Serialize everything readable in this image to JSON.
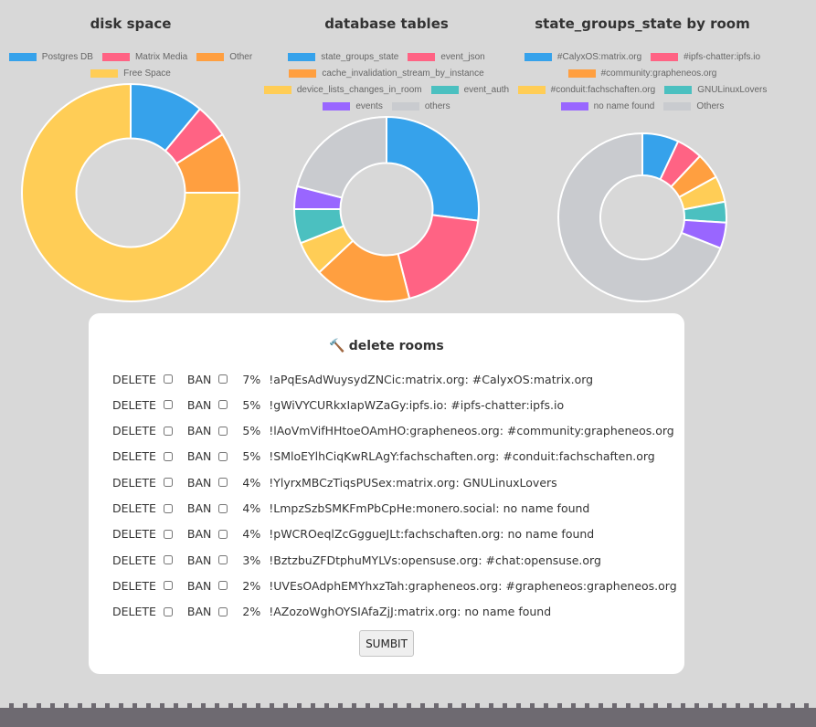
{
  "charts": [
    {
      "title": "disk space",
      "legend": [
        {
          "label": "Postgres DB",
          "color": "#36a2eb"
        },
        {
          "label": "Matrix Media",
          "color": "#ff6384"
        },
        {
          "label": "Other",
          "color": "#ff9f40"
        },
        {
          "label": "Free Space",
          "color": "#ffcd56"
        }
      ]
    },
    {
      "title": "database tables",
      "legend": [
        {
          "label": "state_groups_state",
          "color": "#36a2eb"
        },
        {
          "label": "event_json",
          "color": "#ff6384"
        },
        {
          "label": "cache_invalidation_stream_by_instance",
          "color": "#ff9f40"
        },
        {
          "label": "device_lists_changes_in_room",
          "color": "#ffcd56"
        },
        {
          "label": "event_auth",
          "color": "#4bc0c0"
        },
        {
          "label": "events",
          "color": "#9966ff"
        },
        {
          "label": "others",
          "color": "#c9cbcf"
        }
      ]
    },
    {
      "title": "state_groups_state by room",
      "legend": [
        {
          "label": "#CalyxOS:matrix.org",
          "color": "#36a2eb"
        },
        {
          "label": "#ipfs-chatter:ipfs.io",
          "color": "#ff6384"
        },
        {
          "label": "#community:grapheneos.org",
          "color": "#ff9f40"
        },
        {
          "label": "#conduit:fachschaften.org",
          "color": "#ffcd56"
        },
        {
          "label": "GNULinuxLovers",
          "color": "#4bc0c0"
        },
        {
          "label": "no name found",
          "color": "#9966ff"
        },
        {
          "label": "Others",
          "color": "#c9cbcf"
        }
      ]
    }
  ],
  "chart_data": [
    {
      "type": "pie",
      "title": "disk space",
      "categories": [
        "Postgres DB",
        "Matrix Media",
        "Other",
        "Free Space"
      ],
      "values": [
        11,
        5,
        9,
        75
      ]
    },
    {
      "type": "pie",
      "title": "database tables",
      "categories": [
        "state_groups_state",
        "event_json",
        "cache_invalidation_stream_by_instance",
        "device_lists_changes_in_room",
        "event_auth",
        "events",
        "others"
      ],
      "values": [
        27,
        19,
        17,
        6,
        6,
        4,
        21
      ]
    },
    {
      "type": "pie",
      "title": "state_groups_state by room",
      "categories": [
        "#CalyxOS:matrix.org",
        "#ipfs-chatter:ipfs.io",
        "#community:grapheneos.org",
        "#conduit:fachschaften.org",
        "GNULinuxLovers",
        "no name found",
        "Others"
      ],
      "values": [
        7,
        5,
        5,
        5,
        4,
        5,
        69
      ]
    }
  ],
  "panel": {
    "icon": "🔨",
    "title": "delete rooms",
    "delete_label": "DELETE",
    "ban_label": "BAN",
    "submit_label": "SUMBIT",
    "rows": [
      {
        "percent": "7%",
        "room": "!aPqEsAdWuysydZNCic:matrix.org: #CalyxOS:matrix.org"
      },
      {
        "percent": "5%",
        "room": "!gWiVYCURkxIapWZaGy:ipfs.io: #ipfs-chatter:ipfs.io"
      },
      {
        "percent": "5%",
        "room": "!lAoVmVifHHtoeOAmHO:grapheneos.org: #community:grapheneos.org"
      },
      {
        "percent": "5%",
        "room": "!SMloEYlhCiqKwRLAgY:fachschaften.org: #conduit:fachschaften.org"
      },
      {
        "percent": "4%",
        "room": "!YlyrxMBCzTiqsPUSex:matrix.org: GNULinuxLovers"
      },
      {
        "percent": "4%",
        "room": "!LmpzSzbSMKFmPbCpHe:monero.social: no name found"
      },
      {
        "percent": "4%",
        "room": "!pWCROeqlZcGggueJLt:fachschaften.org: no name found"
      },
      {
        "percent": "3%",
        "room": "!BztzbuZFDtphuMYLVs:opensuse.org: #chat:opensuse.org"
      },
      {
        "percent": "2%",
        "room": "!UVEsOAdphEMYhxzTah:grapheneos.org: #grapheneos:grapheneos.org"
      },
      {
        "percent": "2%",
        "room": "!AZozoWghOYSIAfaZjJ:matrix.org: no name found"
      }
    ]
  }
}
